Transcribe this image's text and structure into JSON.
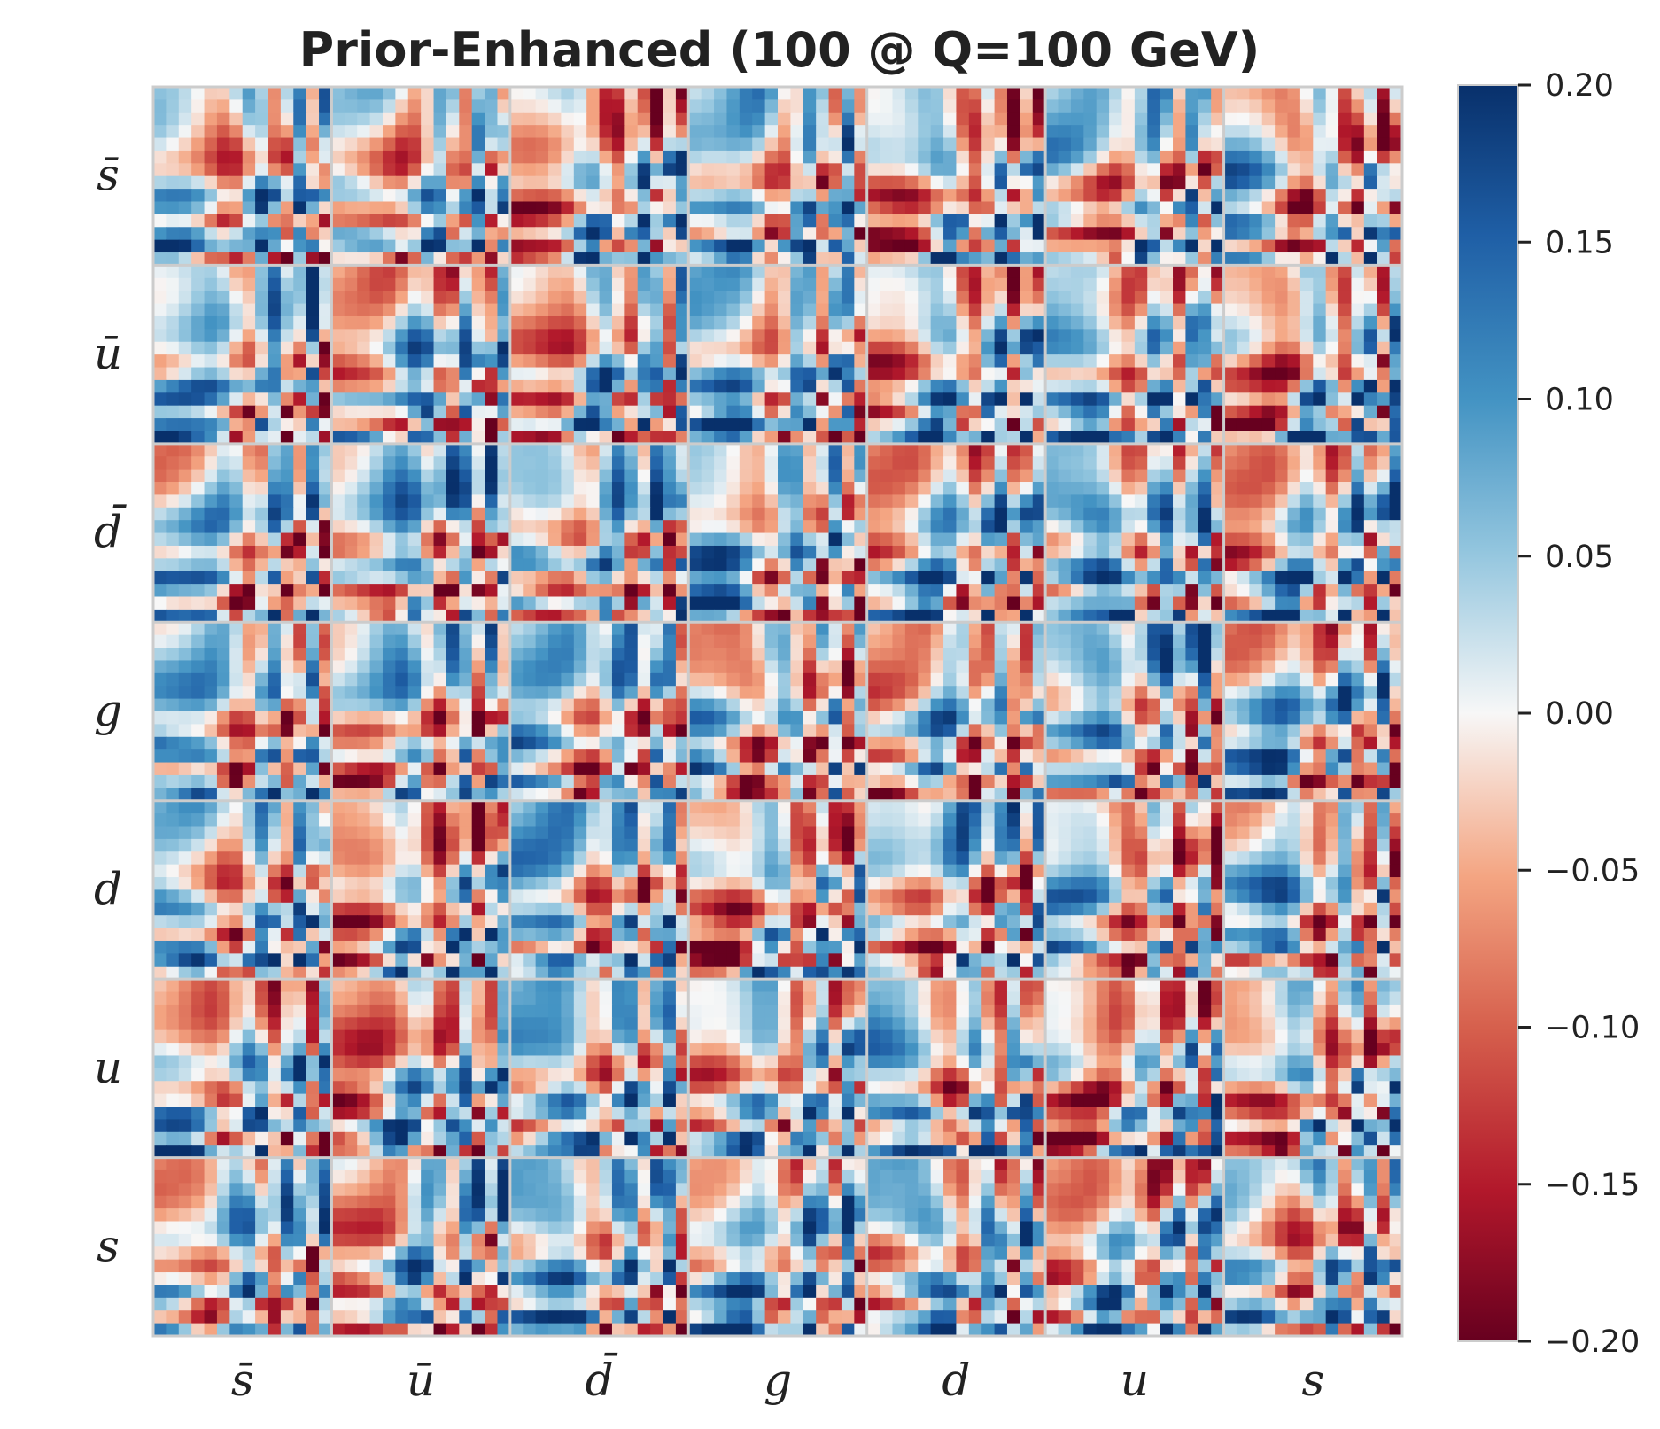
{
  "chart_data": {
    "type": "heatmap",
    "title": "Prior-Enhanced (100 @ Q=100 GeV)",
    "xlabel": "",
    "ylabel": "",
    "flavors_x": [
      "s̄",
      "ū",
      "d̄",
      "g",
      "d",
      "u",
      "s"
    ],
    "flavors_y": [
      "s̄",
      "ū",
      "d̄",
      "g",
      "d",
      "u",
      "s"
    ],
    "grid": "7x7 blocks of correlation maps",
    "colorbar": {
      "colormap": "RdBu",
      "range": [
        -0.2,
        0.2
      ],
      "ticks": [
        "0.20",
        "0.15",
        "0.10",
        "0.05",
        "0.00",
        "−0.05",
        "−0.10",
        "−0.15",
        "−0.20"
      ],
      "tick_values": [
        0.2,
        0.15,
        0.1,
        0.05,
        0.0,
        -0.05,
        -0.1,
        -0.15,
        -0.2
      ],
      "placement": "right"
    },
    "colors": {
      "max": "#08306b",
      "zero": "#f7f7f7",
      "min": "#67001f"
    }
  }
}
